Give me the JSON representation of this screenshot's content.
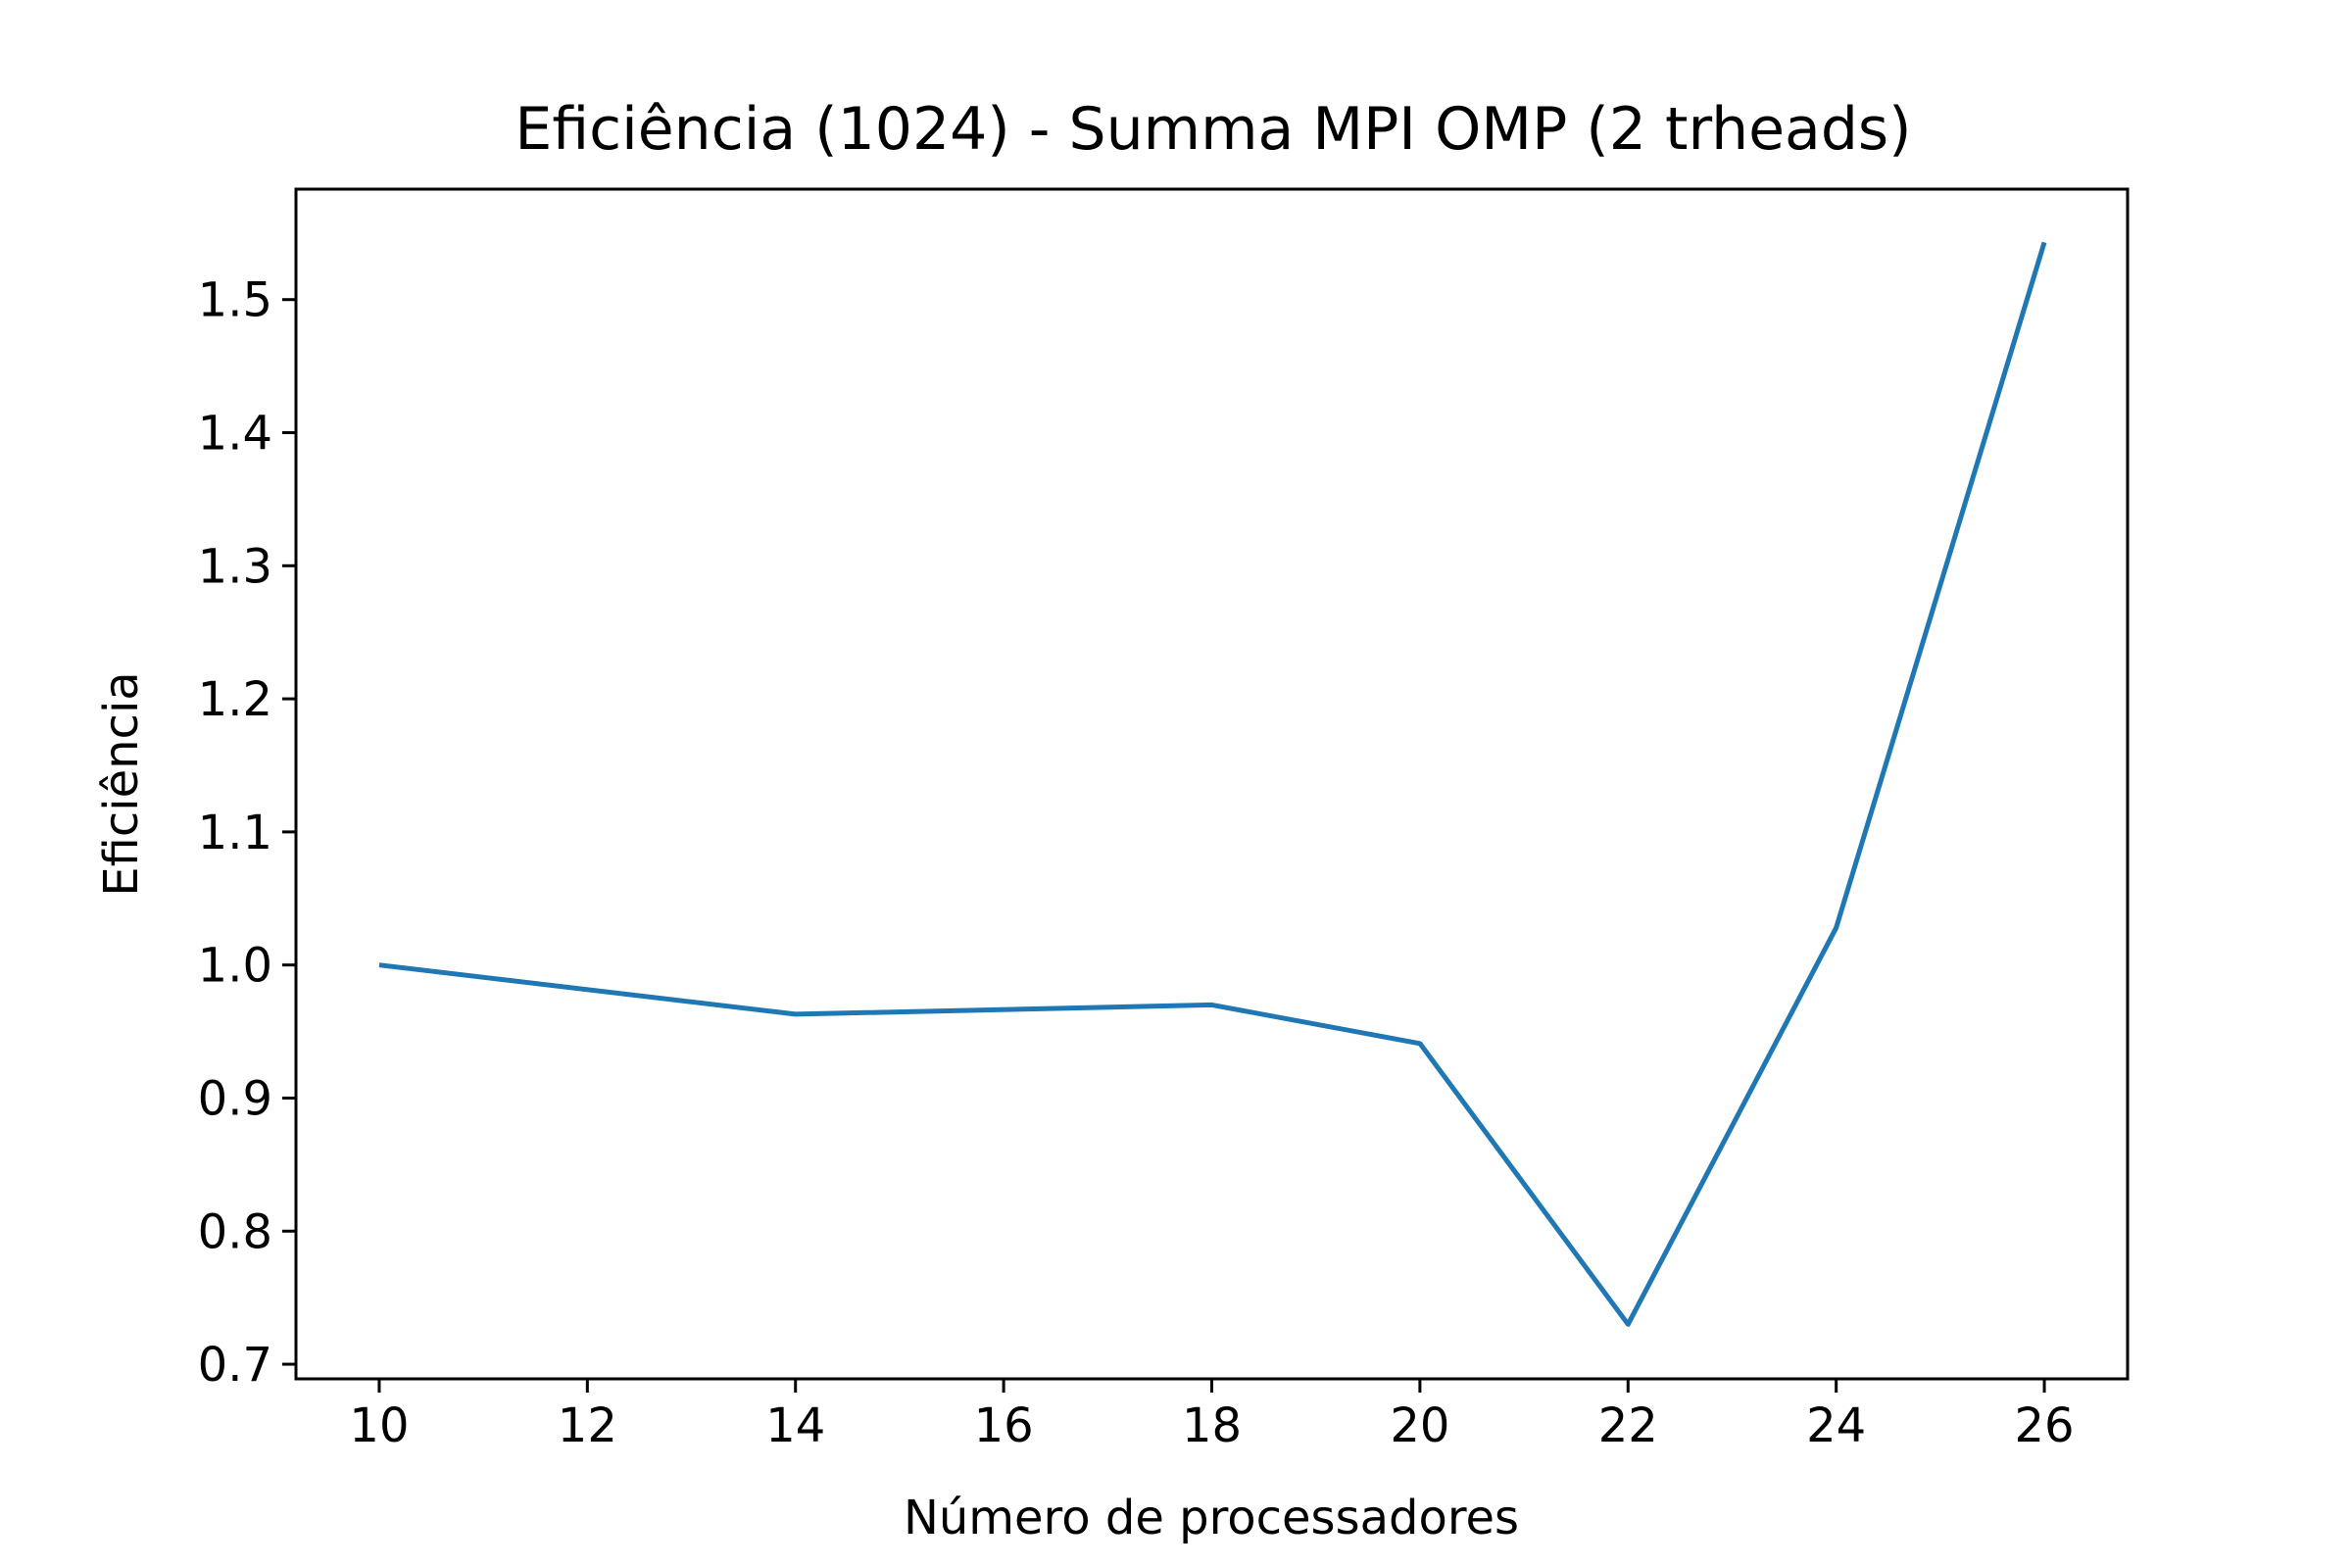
{
  "chart_data": {
    "type": "line",
    "title": "Eficiência (1024) - Summa MPI OMP (2 trheads)",
    "xlabel": "Número de processadores",
    "ylabel": "Eficiência",
    "x": [
      10,
      14,
      18,
      20,
      22,
      24,
      26
    ],
    "series": [
      {
        "values": [
          1.0,
          0.963,
          0.97,
          0.941,
          0.73,
          1.028,
          1.543
        ],
        "color": "#1f77b4"
      }
    ],
    "xlim": [
      9.2,
      26.8
    ],
    "ylim": [
      0.689,
      1.583
    ],
    "xticks": [
      10,
      12,
      14,
      16,
      18,
      20,
      22,
      24,
      26
    ],
    "yticks": [
      0.7,
      0.8,
      0.9,
      1.0,
      1.1,
      1.2,
      1.3,
      1.4,
      1.5
    ],
    "xtick_labels": [
      "10",
      "12",
      "14",
      "16",
      "18",
      "20",
      "22",
      "24",
      "26"
    ],
    "ytick_labels": [
      "0.7",
      "0.8",
      "0.9",
      "1.0",
      "1.1",
      "1.2",
      "1.3",
      "1.4",
      "1.5"
    ],
    "grid": false,
    "legend": "none"
  }
}
